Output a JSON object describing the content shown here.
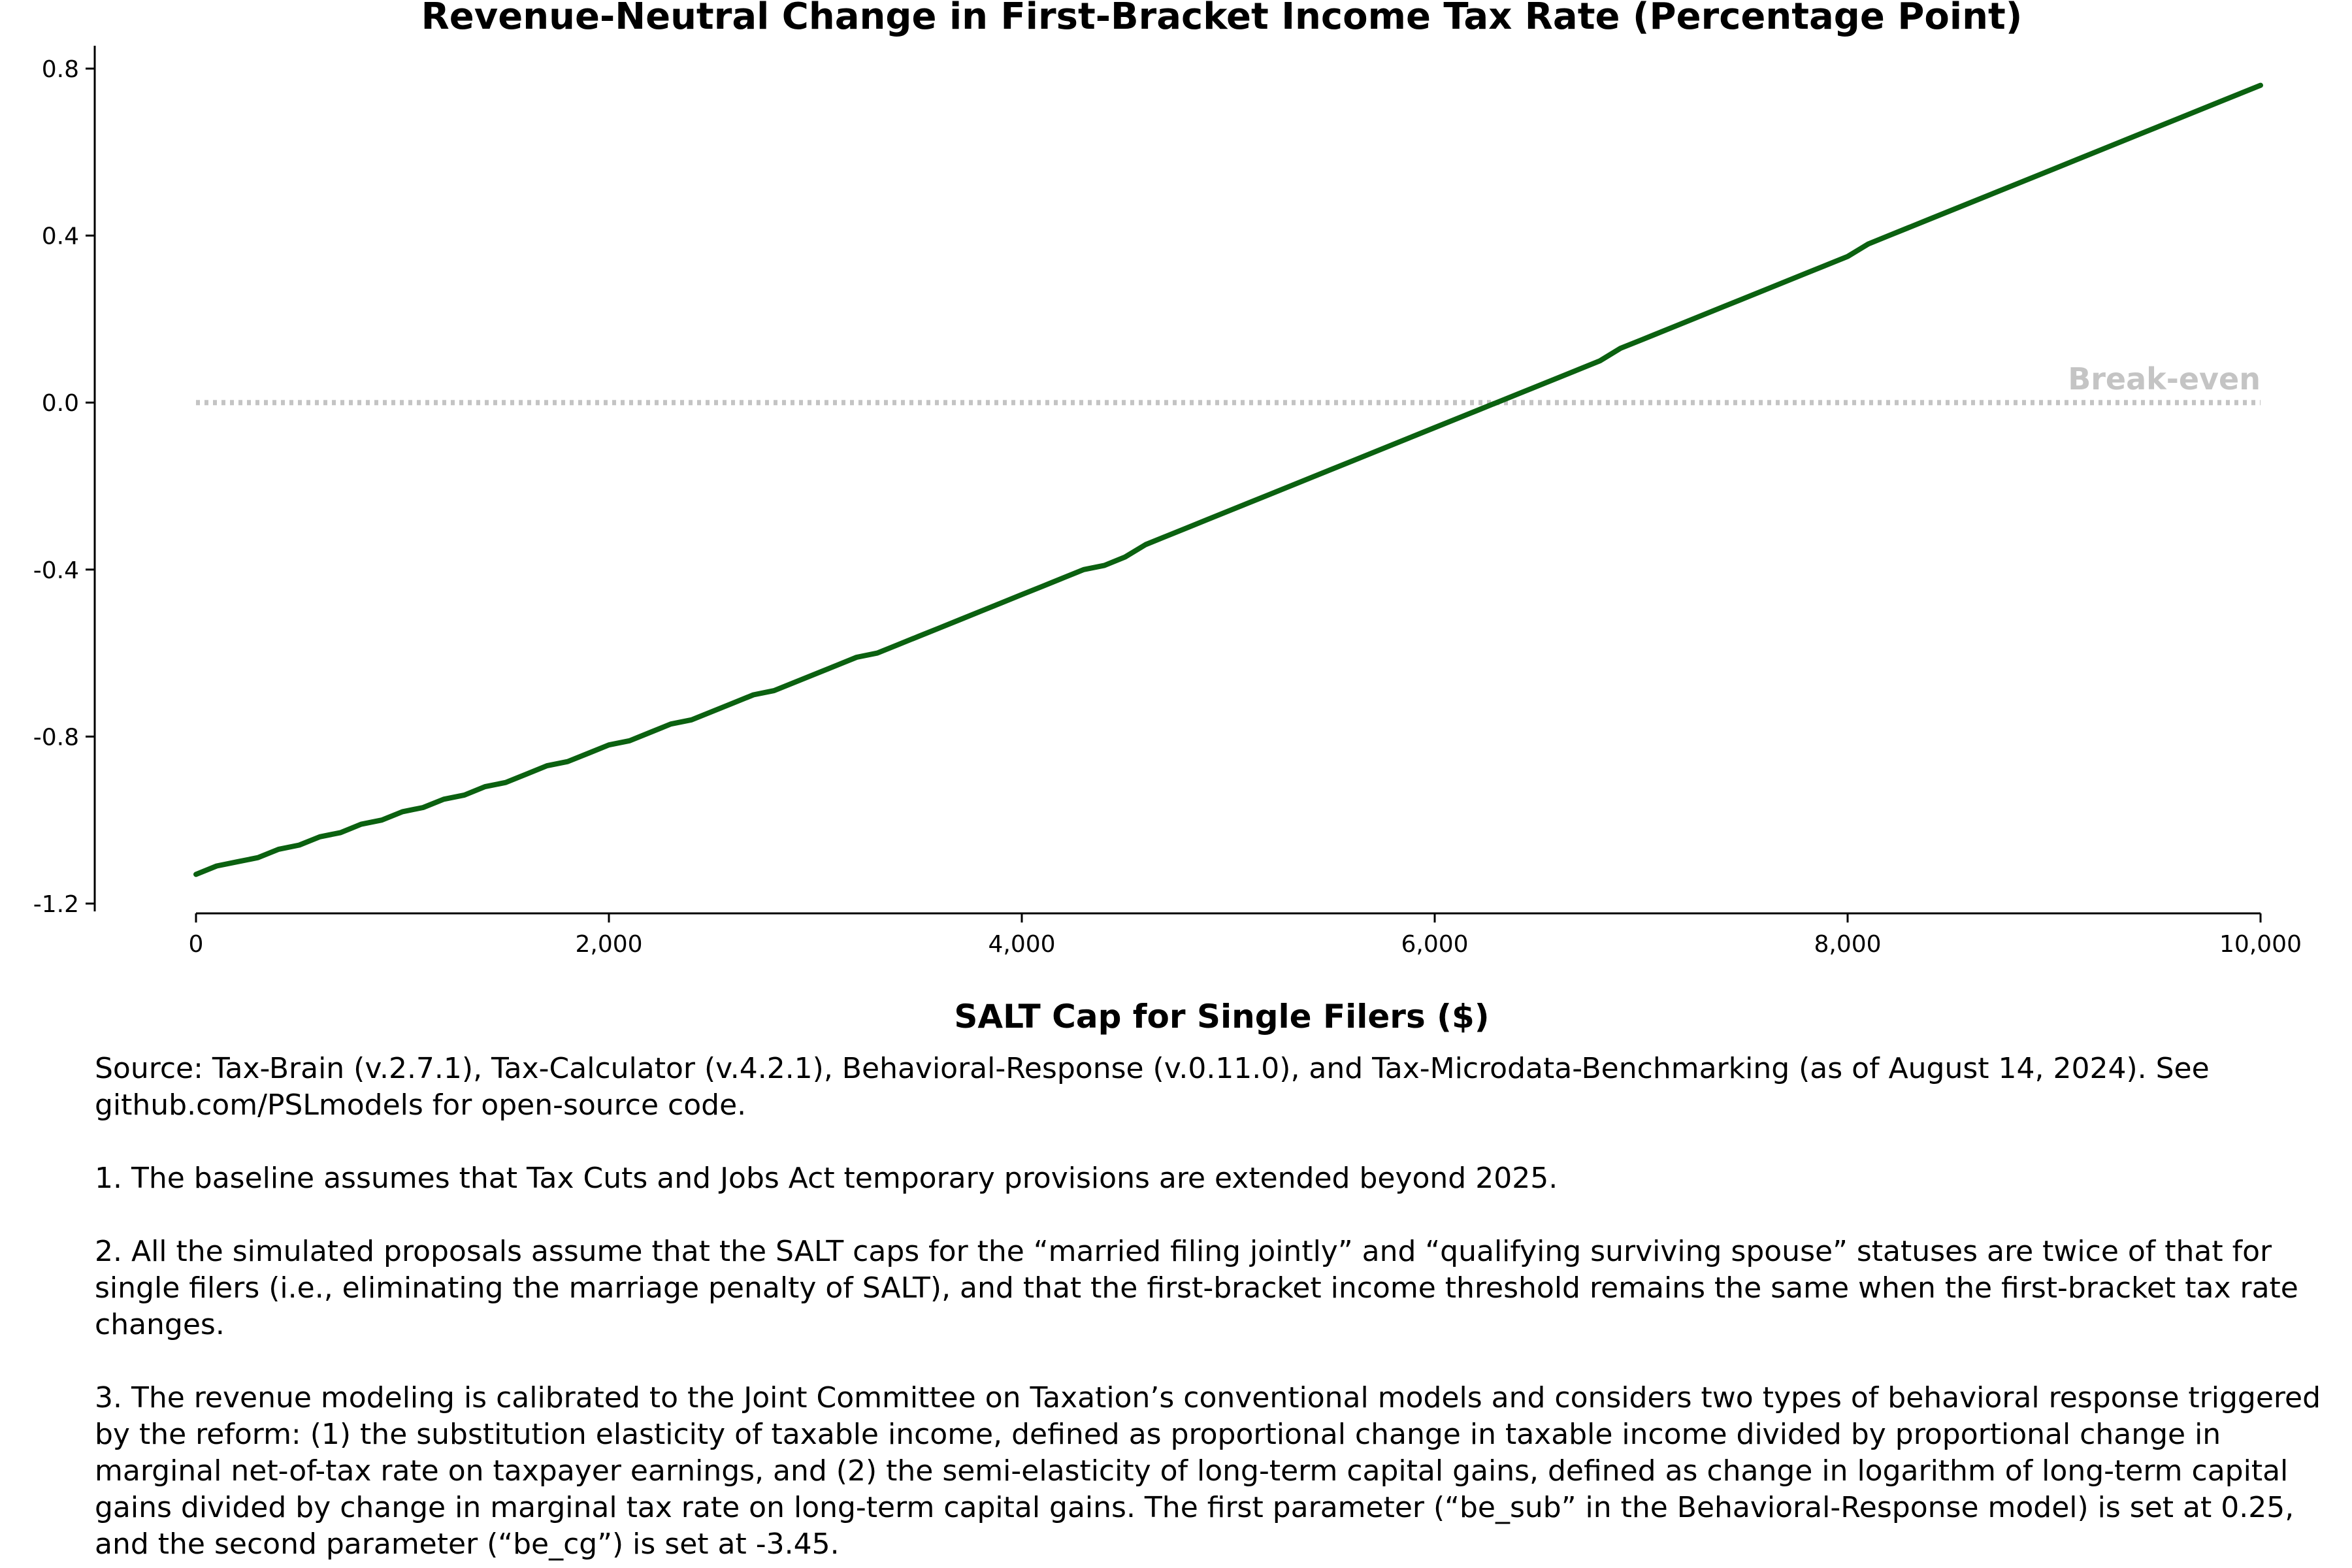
{
  "chart_data": {
    "type": "line",
    "title": "Revenue-Neutral Change in First-Bracket Income Tax Rate (Percentage Point)",
    "xlabel": "SALT Cap for Single Filers ($)",
    "ylabel": "",
    "xlim": [
      0,
      10000
    ],
    "ylim": [
      -1.2,
      0.8
    ],
    "xticks": [
      0,
      2000,
      4000,
      6000,
      8000,
      10000
    ],
    "xtick_labels": [
      "0",
      "2,000",
      "4,000",
      "6,000",
      "8,000",
      "10,000"
    ],
    "yticks": [
      0.8,
      0.4,
      0.0,
      -0.4,
      -0.8,
      -1.2
    ],
    "ytick_labels": [
      "0.8",
      "0.4",
      "0.0",
      "-0.4",
      "-0.8",
      "-1.2"
    ],
    "grid": false,
    "series": [
      {
        "color": "#0b6110",
        "x": [
          0,
          100,
          200,
          300,
          400,
          500,
          600,
          700,
          800,
          900,
          1000,
          1100,
          1200,
          1300,
          1400,
          1500,
          1600,
          1700,
          1800,
          1900,
          2000,
          2100,
          2200,
          2300,
          2400,
          2500,
          2600,
          2700,
          2800,
          2900,
          3000,
          3100,
          3200,
          3300,
          3400,
          3500,
          3600,
          3700,
          3800,
          3900,
          4000,
          4100,
          4200,
          4300,
          4400,
          4500,
          4600,
          4700,
          4800,
          4900,
          5000,
          5200,
          5400,
          5600,
          5800,
          6000,
          6200,
          6400,
          6600,
          6800,
          6900,
          7000,
          7200,
          7400,
          7600,
          7800,
          8000,
          8100,
          8200,
          8400,
          8600,
          8800,
          9000,
          9200,
          9400,
          9600,
          9800,
          10000
        ],
        "values": [
          -1.13,
          -1.11,
          -1.1,
          -1.09,
          -1.07,
          -1.06,
          -1.04,
          -1.03,
          -1.01,
          -1.0,
          -0.98,
          -0.97,
          -0.95,
          -0.94,
          -0.92,
          -0.91,
          -0.89,
          -0.87,
          -0.86,
          -0.84,
          -0.82,
          -0.81,
          -0.79,
          -0.77,
          -0.76,
          -0.74,
          -0.72,
          -0.7,
          -0.69,
          -0.67,
          -0.65,
          -0.63,
          -0.61,
          -0.6,
          -0.58,
          -0.56,
          -0.54,
          -0.52,
          -0.5,
          -0.48,
          -0.46,
          -0.44,
          -0.42,
          -0.4,
          -0.39,
          -0.37,
          -0.34,
          -0.32,
          -0.3,
          -0.28,
          -0.26,
          -0.22,
          -0.18,
          -0.14,
          -0.1,
          -0.06,
          -0.02,
          0.02,
          0.06,
          0.1,
          0.13,
          0.15,
          0.19,
          0.23,
          0.27,
          0.31,
          0.35,
          0.38,
          0.4,
          0.44,
          0.48,
          0.52,
          0.56,
          0.6,
          0.64,
          0.68,
          0.72,
          0.76
        ]
      }
    ],
    "reference_line": {
      "y": 0.0,
      "label": "Break-even",
      "color": "#c4c4c4",
      "style": "dotted"
    }
  },
  "notes": {
    "source": "Source: Tax-Brain (v.2.7.1), Tax-Calculator (v.4.2.1), Behavioral-Response (v.0.11.0), and Tax-Microdata-Benchmarking (as of August 14, 2024). See github.com/PSLmodels for open-source code.",
    "note1": "1. The baseline assumes that Tax Cuts and Jobs Act temporary provisions are extended beyond 2025.",
    "note2": "2. All the simulated proposals assume that the SALT caps for the “married filing jointly” and “qualifying surviving spouse” statuses are twice of that for single filers (i.e., eliminating the marriage penalty of SALT), and that the first-bracket income threshold remains the same when the first-bracket tax rate changes.",
    "note3": "3. The revenue modeling is calibrated to the Joint Committee on Taxation’s conventional models and considers two types of behavioral response triggered by the reform: (1) the substitution elasticity of taxable income, defined as proportional change in taxable income divided by proportional change in marginal net-of-tax rate on taxpayer earnings, and (2) the semi-elasticity of long-term capital gains, defined as change in logarithm of long-term capital gains divided by change in marginal tax rate on long-term capital gains. The first parameter (“be_sub” in the Behavioral-Response model) is set at 0.25, and the second parameter (“be_cg”) is set at -3.45."
  }
}
